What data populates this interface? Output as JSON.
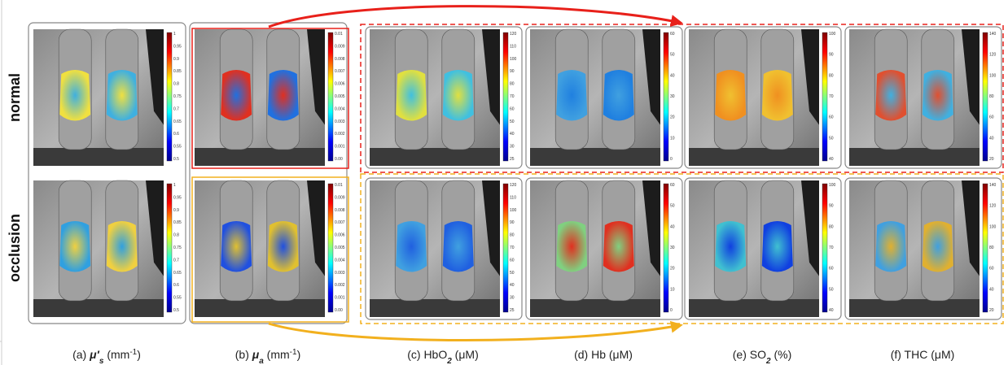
{
  "row_labels": [
    "normal",
    "occlusion"
  ],
  "panels": [
    {
      "caption": {
        "main": "(a) ",
        "sym": "μ′",
        "sub": "s",
        "mid": " (mm",
        "sup": "-1",
        "end": ")"
      },
      "colorbar": [
        "1",
        "0.95",
        "0.9",
        "0.85",
        "0.8",
        "0.75",
        "0.7",
        "0.65",
        "0.6",
        "0.55",
        "0.5"
      ]
    },
    {
      "caption": {
        "main": "(b) ",
        "sym": "μ",
        "sub": "a",
        "mid": " (mm",
        "sup": "-1",
        "end": ")"
      },
      "colorbar": [
        "0.01",
        "0.009",
        "0.008",
        "0.007",
        "0.006",
        "0.005",
        "0.004",
        "0.003",
        "0.002",
        "0.001",
        "0.00"
      ]
    },
    {
      "caption": {
        "main": "(c) HbO",
        "sub": "2",
        "mid": " (μM)"
      },
      "colorbar": [
        "120",
        "110",
        "100",
        "90",
        "80",
        "70",
        "60",
        "50",
        "40",
        "30",
        "25"
      ]
    },
    {
      "caption": {
        "main": "(d) Hb (μM)"
      },
      "colorbar": [
        "60",
        "50",
        "40",
        "30",
        "20",
        "10",
        "0"
      ]
    },
    {
      "caption": {
        "main": "(e) SO",
        "sub": "2",
        "mid": " (%)"
      },
      "colorbar": [
        "100",
        "90",
        "80",
        "70",
        "60",
        "50",
        "40"
      ]
    },
    {
      "caption": {
        "main": "(f) THC (μM)"
      },
      "colorbar": [
        "140",
        "120",
        "100",
        "80",
        "60",
        "40",
        "20"
      ]
    }
  ]
}
